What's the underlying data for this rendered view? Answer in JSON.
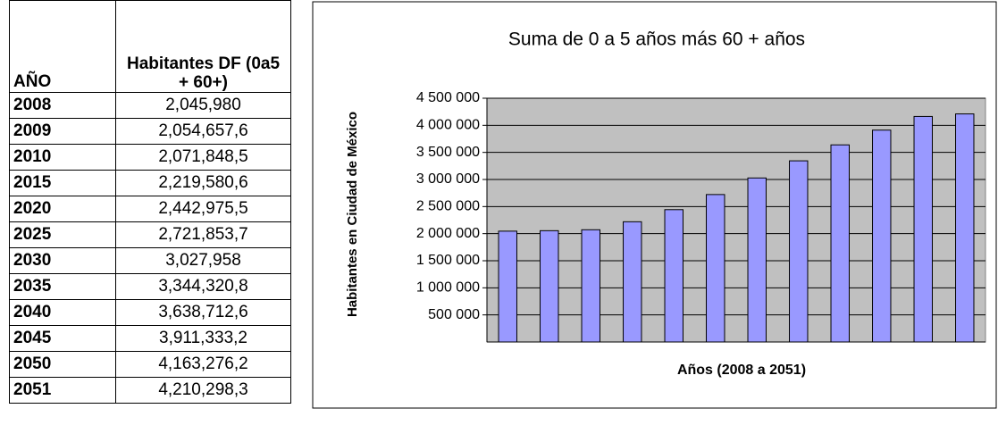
{
  "table": {
    "header": [
      "AÑO",
      "Habitantes DF (0a5 + 60+)"
    ],
    "rows": [
      [
        "2008",
        "2,045,980"
      ],
      [
        "2009",
        "2,054,657,6"
      ],
      [
        "2010",
        "2,071,848,5"
      ],
      [
        "2015",
        "2,219,580,6"
      ],
      [
        "2020",
        "2,442,975,5"
      ],
      [
        "2025",
        "2,721,853,7"
      ],
      [
        "2030",
        "3,027,958"
      ],
      [
        "2035",
        "3,344,320,8"
      ],
      [
        "2040",
        "3,638,712,6"
      ],
      [
        "2045",
        "3,911,333,2"
      ],
      [
        "2050",
        "4,163,276,2"
      ],
      [
        "2051",
        "4,210,298,3"
      ]
    ]
  },
  "chart_data": {
    "type": "bar",
    "title": "Suma de 0 a 5 años más 60 + años",
    "x_label": "Años (2008 a 2051)",
    "y_label": "Habitantes en Ciudad de México",
    "categories": [
      null,
      null,
      null,
      null,
      null,
      null,
      null,
      null,
      null,
      null,
      null,
      null
    ],
    "values": [
      2045980,
      2054657.6,
      2071848.5,
      2219580.6,
      2442975.5,
      2721853.7,
      3027958,
      3344320.8,
      3638712.6,
      3911333.2,
      4163276.2,
      4210298.3
    ],
    "color": "#9999ff",
    "plot_background": "#c0c0c0",
    "ylim": [
      0,
      4500000
    ],
    "yticks": [
      {
        "value": 500000,
        "label": "500 000"
      },
      {
        "value": 1000000,
        "label": "1 000 000"
      },
      {
        "value": 1500000,
        "label": "1 500 000"
      },
      {
        "value": 2000000,
        "label": "2 000 000"
      },
      {
        "value": 2500000,
        "label": "2 500 000"
      },
      {
        "value": 3000000,
        "label": "3 000 000"
      },
      {
        "value": 3500000,
        "label": "3 500 000"
      },
      {
        "value": 4000000,
        "label": "4 000 000"
      },
      {
        "value": 4500000,
        "label": "4 500 000"
      }
    ],
    "grid": true
  }
}
